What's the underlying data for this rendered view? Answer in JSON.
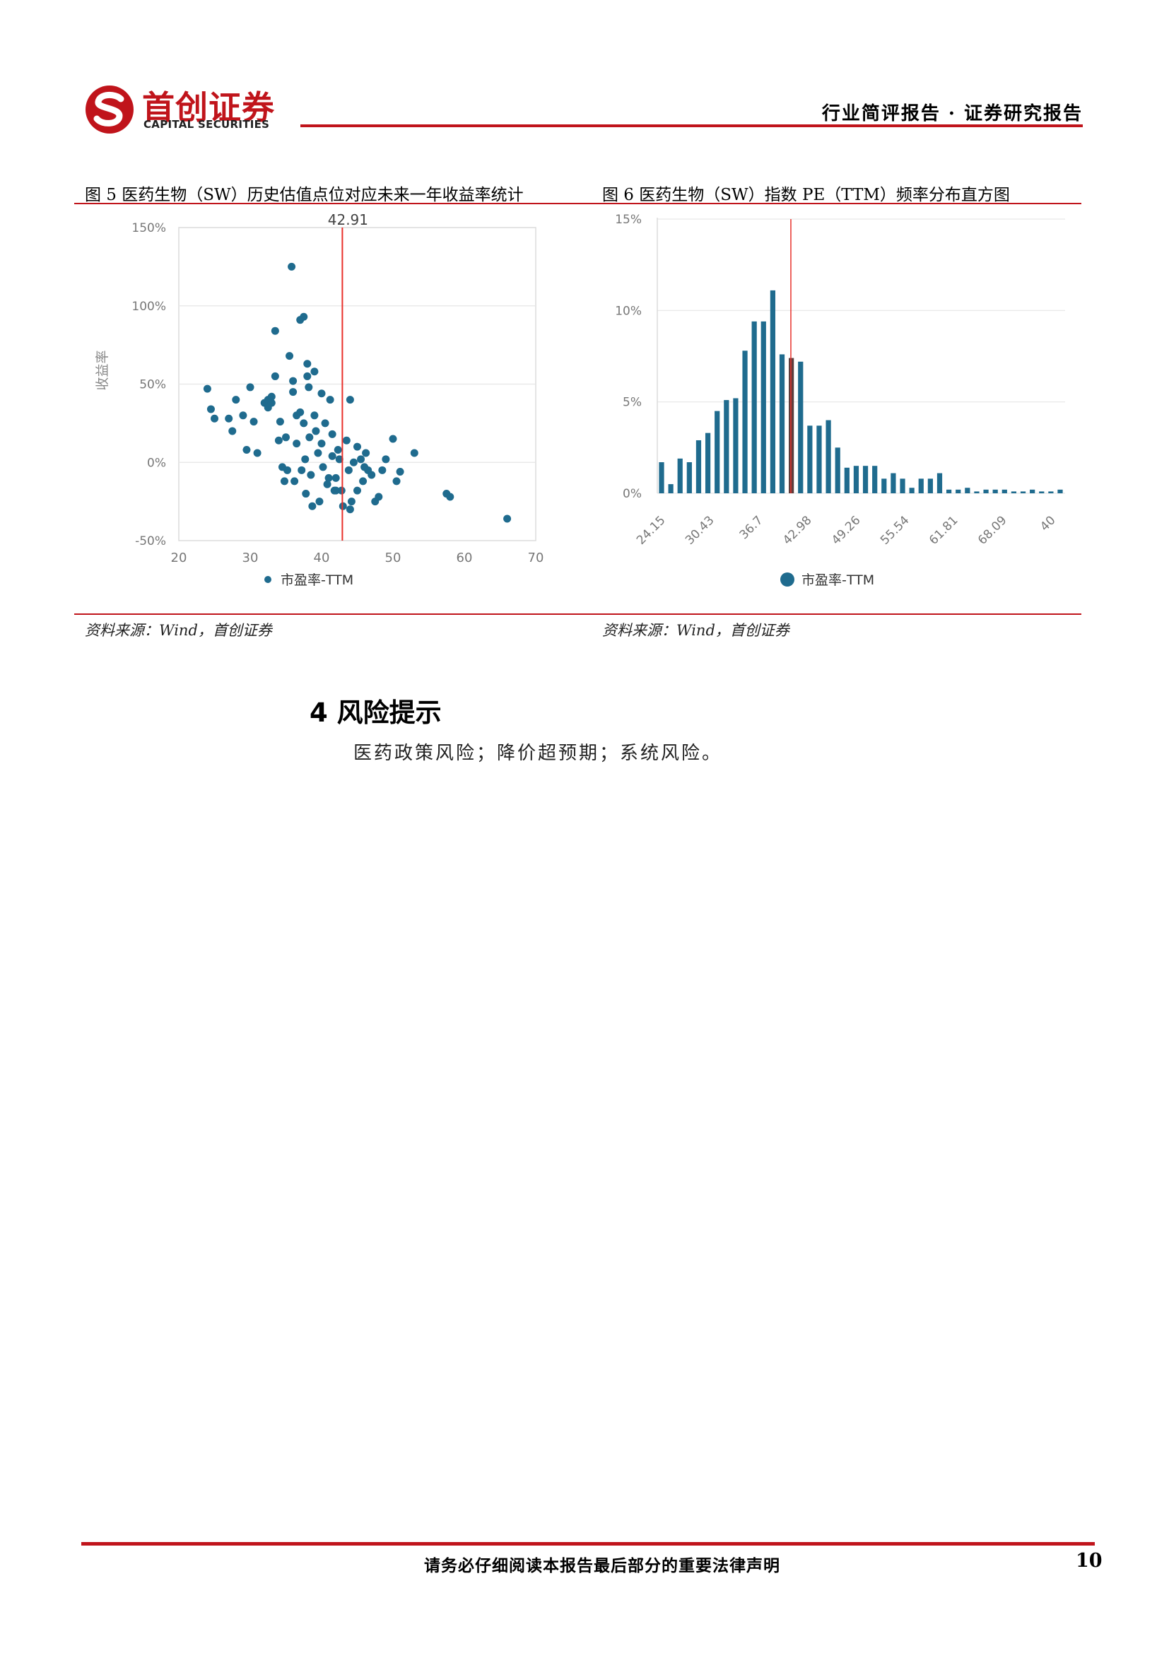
{
  "header": {
    "logo_cn": "首创证券",
    "logo_en": "CAPITAL SECURITIES",
    "report_type": "行业简评报告 · 证券研究报告",
    "brand_color": "#c0141b"
  },
  "figures": [
    {
      "caption": "图 5 医药生物（SW）历史估值点位对应未来一年收益率统计",
      "source": "资料来源：Wind，首创证券"
    },
    {
      "caption": "图 6 医药生物（SW）指数 PE（TTM）频率分布直方图",
      "source": "资料来源：Wind，首创证券"
    }
  ],
  "chart_data": [
    {
      "type": "scatter",
      "ylabel": "收益率",
      "xlim": [
        20,
        70
      ],
      "ylim": [
        -50,
        150
      ],
      "x_ticks": [
        "20",
        "30",
        "40",
        "50",
        "60",
        "70"
      ],
      "y_ticks": [
        "150%",
        "100%",
        "50%",
        "0%",
        "-50%"
      ],
      "reference_line": {
        "x": 42.91,
        "label": "42.91",
        "color": "#e8302a"
      },
      "legend": "市盈率-TTM",
      "legend_position": "bottom-center",
      "series_color": "#1f6b8e",
      "points": [
        [
          24,
          47
        ],
        [
          24.5,
          34
        ],
        [
          25,
          28
        ],
        [
          27,
          28
        ],
        [
          27.5,
          20
        ],
        [
          28,
          40
        ],
        [
          29,
          30
        ],
        [
          29.5,
          8
        ],
        [
          30,
          48
        ],
        [
          30.5,
          26
        ],
        [
          31,
          6
        ],
        [
          32,
          38
        ],
        [
          32.5,
          35
        ],
        [
          32.5,
          40
        ],
        [
          33,
          38
        ],
        [
          33,
          42
        ],
        [
          33.5,
          55
        ],
        [
          33.5,
          84
        ],
        [
          34,
          14
        ],
        [
          34.2,
          26
        ],
        [
          34.5,
          -3
        ],
        [
          34.8,
          -12
        ],
        [
          35,
          16
        ],
        [
          35.2,
          -5
        ],
        [
          35.5,
          68
        ],
        [
          35.8,
          125
        ],
        [
          36,
          52
        ],
        [
          36,
          45
        ],
        [
          36.2,
          -12
        ],
        [
          36.5,
          30
        ],
        [
          36.5,
          12
        ],
        [
          37,
          91
        ],
        [
          37,
          32
        ],
        [
          37.2,
          -5
        ],
        [
          37.5,
          93
        ],
        [
          37.5,
          25
        ],
        [
          37.7,
          2
        ],
        [
          37.8,
          -20
        ],
        [
          38,
          63
        ],
        [
          38,
          55
        ],
        [
          38.2,
          48
        ],
        [
          38.3,
          16
        ],
        [
          38.5,
          -8
        ],
        [
          38.7,
          -28
        ],
        [
          39,
          30
        ],
        [
          39,
          58
        ],
        [
          39.2,
          20
        ],
        [
          39.5,
          6
        ],
        [
          39.7,
          -25
        ],
        [
          40,
          44
        ],
        [
          40,
          12
        ],
        [
          40.2,
          -3
        ],
        [
          40.5,
          25
        ],
        [
          40.8,
          -14
        ],
        [
          41,
          -10
        ],
        [
          41.2,
          40
        ],
        [
          41.5,
          18
        ],
        [
          41.5,
          4
        ],
        [
          41.8,
          -18
        ],
        [
          42,
          -18
        ],
        [
          42,
          -10
        ],
        [
          42.3,
          8
        ],
        [
          42.5,
          2
        ],
        [
          42.8,
          -18
        ],
        [
          43,
          -28
        ],
        [
          43.5,
          14
        ],
        [
          43.8,
          -5
        ],
        [
          44,
          40
        ],
        [
          44,
          -30
        ],
        [
          44.2,
          -25
        ],
        [
          44.5,
          0
        ],
        [
          45,
          10
        ],
        [
          45,
          -18
        ],
        [
          45.5,
          2
        ],
        [
          45.8,
          -12
        ],
        [
          46,
          -3
        ],
        [
          46.2,
          6
        ],
        [
          46.5,
          -5
        ],
        [
          47,
          -8
        ],
        [
          47.5,
          -25
        ],
        [
          48,
          -22
        ],
        [
          48.5,
          -5
        ],
        [
          49,
          2
        ],
        [
          50,
          15
        ],
        [
          50.5,
          -12
        ],
        [
          51,
          -6
        ],
        [
          53,
          6
        ],
        [
          57.5,
          -20
        ],
        [
          58,
          -22
        ],
        [
          66,
          -36
        ]
      ]
    },
    {
      "type": "bar",
      "ylim": [
        0,
        15
      ],
      "y_ticks": [
        "15%",
        "10%",
        "5%",
        "0%"
      ],
      "x_tick_labels": [
        "24.15",
        "30.43",
        "36.7",
        "42.98",
        "49.26",
        "55.54",
        "61.81",
        "68.09",
        "40"
      ],
      "reference_line": {
        "x": 42.91,
        "color": "#e8302a"
      },
      "highlight_color": "#5c3d3d",
      "legend": "市盈率-TTM",
      "legend_position": "bottom-center",
      "series_color": "#1f6b8e",
      "values": [
        1.7,
        0.5,
        1.9,
        1.7,
        2.9,
        3.3,
        4.5,
        5.1,
        5.2,
        7.8,
        9.4,
        9.4,
        11.1,
        7.6,
        7.4,
        7.2,
        3.7,
        3.7,
        4.0,
        2.5,
        1.4,
        1.5,
        1.5,
        1.5,
        0.8,
        1.1,
        0.8,
        0.3,
        0.8,
        0.8,
        1.1,
        0.2,
        0.2,
        0.3,
        0.1,
        0.2,
        0.2,
        0.2,
        0.1,
        0.1,
        0.2,
        0.1,
        0.1,
        0.2
      ],
      "highlight_index": 14
    }
  ],
  "section": {
    "title": "4 风险提示",
    "body": "医药政策风险；降价超预期；系统风险。"
  },
  "footer": {
    "notice": "请务必仔细阅读本报告最后部分的重要法律声明",
    "page_number": "10"
  }
}
